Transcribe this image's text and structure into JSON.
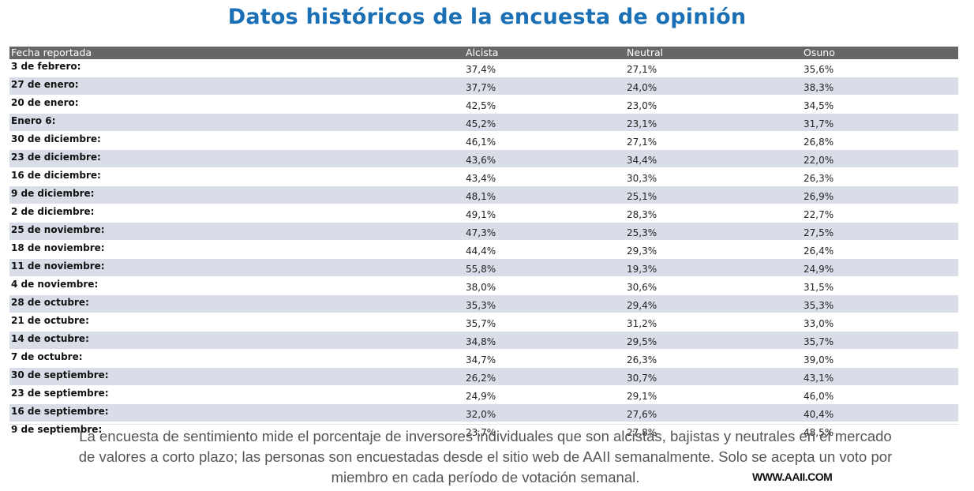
{
  "title": "Datos históricos de la encuesta de opinión",
  "table": {
    "headers": [
      "Fecha reportada",
      "Alcista",
      "Neutral",
      "Osuno"
    ],
    "rows": [
      [
        "3 de febrero:",
        "37,4%",
        "27,1%",
        "35,6%"
      ],
      [
        "27 de enero:",
        "37,7%",
        "24,0%",
        "38,3%"
      ],
      [
        "20 de enero:",
        "42,5%",
        "23,0%",
        "34,5%"
      ],
      [
        "Enero 6:",
        "45,2%",
        "23,1%",
        "31,7%"
      ],
      [
        "30 de diciembre:",
        "46,1%",
        "27,1%",
        "26,8%"
      ],
      [
        "23 de diciembre:",
        "43,6%",
        "34,4%",
        "22,0%"
      ],
      [
        "16 de diciembre:",
        "43,4%",
        "30,3%",
        "26,3%"
      ],
      [
        "9 de diciembre:",
        "48,1%",
        "25,1%",
        "26,9%"
      ],
      [
        "2 de diciembre:",
        "49,1%",
        "28,3%",
        "22,7%"
      ],
      [
        "25 de noviembre:",
        "47,3%",
        "25,3%",
        "27,5%"
      ],
      [
        "18 de noviembre:",
        "44,4%",
        "29,3%",
        "26,4%"
      ],
      [
        "11 de noviembre:",
        "55,8%",
        "19,3%",
        "24,9%"
      ],
      [
        "4 de noviembre:",
        "38,0%",
        "30,6%",
        "31,5%"
      ],
      [
        "28 de octubre:",
        "35,3%",
        "29,4%",
        "35,3%"
      ],
      [
        "21 de octubre:",
        "35,7%",
        "31,2%",
        "33,0%"
      ],
      [
        "14 de octubre:",
        "34,8%",
        "29,5%",
        "35,7%"
      ],
      [
        "7 de octubre:",
        "34,7%",
        "26,3%",
        "39,0%"
      ],
      [
        "30 de septiembre:",
        "26,2%",
        "30,7%",
        "43,1%"
      ],
      [
        "23 de septiembre:",
        "24,9%",
        "29,1%",
        "46,0%"
      ],
      [
        "16 de septiembre:",
        "32,0%",
        "27,6%",
        "40,4%"
      ],
      [
        "9 de septiembre:",
        "23,7%",
        "27,8%",
        "48,5%"
      ]
    ]
  },
  "footnote": "La encuesta de sentimiento mide el porcentaje de inversores individuales que son alcistas, bajistas y neutrales en el mercado de valores a corto plazo; las personas son encuestadas desde el sitio web de AAII semanalmente. Solo se acepta un voto por miembro en cada período de votación semanal.",
  "source": "WWW.AAII.COM",
  "chart_data": {
    "type": "table",
    "title": "Datos históricos de la encuesta de opinión",
    "columns": [
      "Fecha reportada",
      "Alcista",
      "Neutral",
      "Osuno"
    ],
    "categories": [
      "3 de febrero",
      "27 de enero",
      "20 de enero",
      "Enero 6",
      "30 de diciembre",
      "23 de diciembre",
      "16 de diciembre",
      "9 de diciembre",
      "2 de diciembre",
      "25 de noviembre",
      "18 de noviembre",
      "11 de noviembre",
      "4 de noviembre",
      "28 de octubre",
      "21 de octubre",
      "14 de octubre",
      "7 de octubre",
      "30 de septiembre",
      "23 de septiembre",
      "16 de septiembre",
      "9 de septiembre"
    ],
    "series": [
      {
        "name": "Alcista",
        "values": [
          37.4,
          37.7,
          42.5,
          45.2,
          46.1,
          43.6,
          43.4,
          48.1,
          49.1,
          47.3,
          44.4,
          55.8,
          38.0,
          35.3,
          35.7,
          34.8,
          34.7,
          26.2,
          24.9,
          32.0,
          23.7
        ]
      },
      {
        "name": "Neutral",
        "values": [
          27.1,
          24.0,
          23.0,
          23.1,
          27.1,
          34.4,
          30.3,
          25.1,
          28.3,
          25.3,
          29.3,
          19.3,
          30.6,
          29.4,
          31.2,
          29.5,
          26.3,
          30.7,
          29.1,
          27.6,
          27.8
        ]
      },
      {
        "name": "Osuno",
        "values": [
          35.6,
          38.3,
          34.5,
          31.7,
          26.8,
          22.0,
          26.3,
          26.9,
          22.7,
          27.5,
          26.4,
          24.9,
          31.5,
          35.3,
          33.0,
          35.7,
          39.0,
          43.1,
          46.0,
          40.4,
          48.5
        ]
      }
    ],
    "unit": "%"
  }
}
